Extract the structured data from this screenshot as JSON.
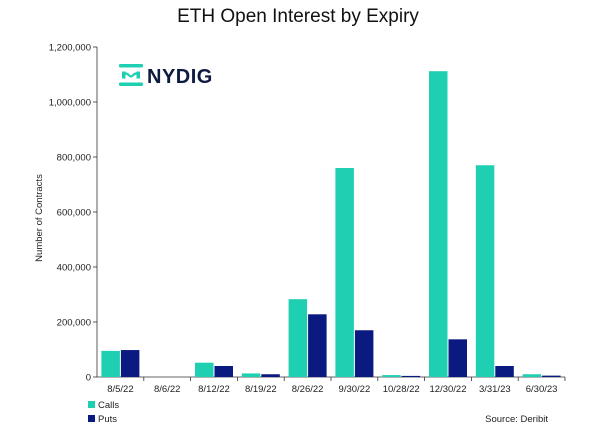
{
  "chart_data": {
    "type": "bar",
    "title": "ETH Open Interest by Expiry",
    "ylabel": "Number of Contracts",
    "xlabel": "",
    "ylim": [
      0,
      1200000
    ],
    "yticks": [
      0,
      200000,
      400000,
      600000,
      800000,
      1000000,
      1200000
    ],
    "ytick_labels": [
      "0",
      "200,000",
      "400,000",
      "600,000",
      "800,000",
      "1,000,000",
      "1,200,000"
    ],
    "categories": [
      "8/5/22",
      "8/6/22",
      "8/12/22",
      "8/19/22",
      "8/26/22",
      "9/30/22",
      "10/28/22",
      "12/30/22",
      "3/31/23",
      "6/30/23"
    ],
    "series": [
      {
        "name": "Calls",
        "color": "#1fcfb2",
        "values": [
          95000,
          0,
          52000,
          13000,
          283000,
          760000,
          7000,
          1112000,
          770000,
          10000
        ]
      },
      {
        "name": "Puts",
        "color": "#0b1a80",
        "values": [
          98000,
          0,
          40000,
          10000,
          228000,
          170000,
          4000,
          137000,
          40000,
          5000
        ]
      }
    ],
    "grid": false,
    "legend_position": "bottom-left"
  },
  "logo": {
    "text": "NYDIG",
    "icon": "nydig-logo-icon",
    "color": "#1fcfb2"
  },
  "source": "Source: Deribit"
}
